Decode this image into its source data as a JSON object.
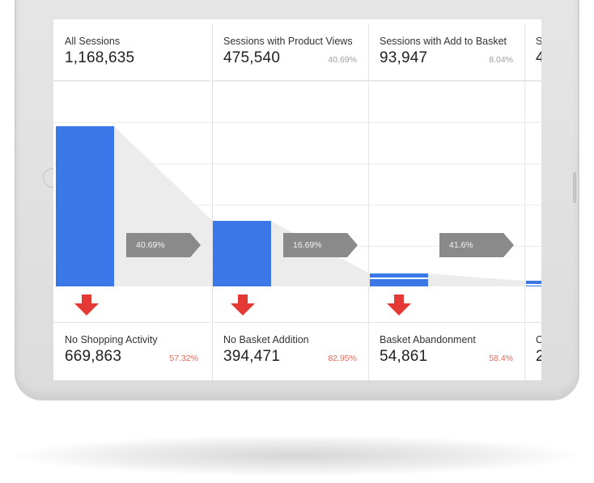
{
  "colors": {
    "bar": "#3b78e7",
    "drop_arrow": "#e53935",
    "pill": "#8a8a8a",
    "funnel_shade": "#ececec",
    "negative_pct": "#e06a5c"
  },
  "funnel": {
    "stages": [
      {
        "label": "All Sessions",
        "value": "1,168,635",
        "pct": "",
        "level": 1.0
      },
      {
        "label": "Sessions with Product Views",
        "value": "475,540",
        "pct": "40.69%",
        "level": 0.4069
      },
      {
        "label": "Sessions with Add to Basket",
        "value": "93,947",
        "pct": "8.04%",
        "level": 0.0804
      },
      {
        "label": "S",
        "value": "4",
        "pct": "",
        "level": 0.033
      }
    ],
    "conversions": [
      "40.69%",
      "16.69%",
      "41.6%"
    ],
    "dropoffs": [
      {
        "label": "No Shopping Activity",
        "value": "669,863",
        "pct": "57.32%"
      },
      {
        "label": "No Basket Addition",
        "value": "394,471",
        "pct": "82.95%"
      },
      {
        "label": "Basket Abandonment",
        "value": "54,861",
        "pct": "58.4%"
      },
      {
        "label": "C",
        "value": "2",
        "pct": ""
      }
    ]
  }
}
